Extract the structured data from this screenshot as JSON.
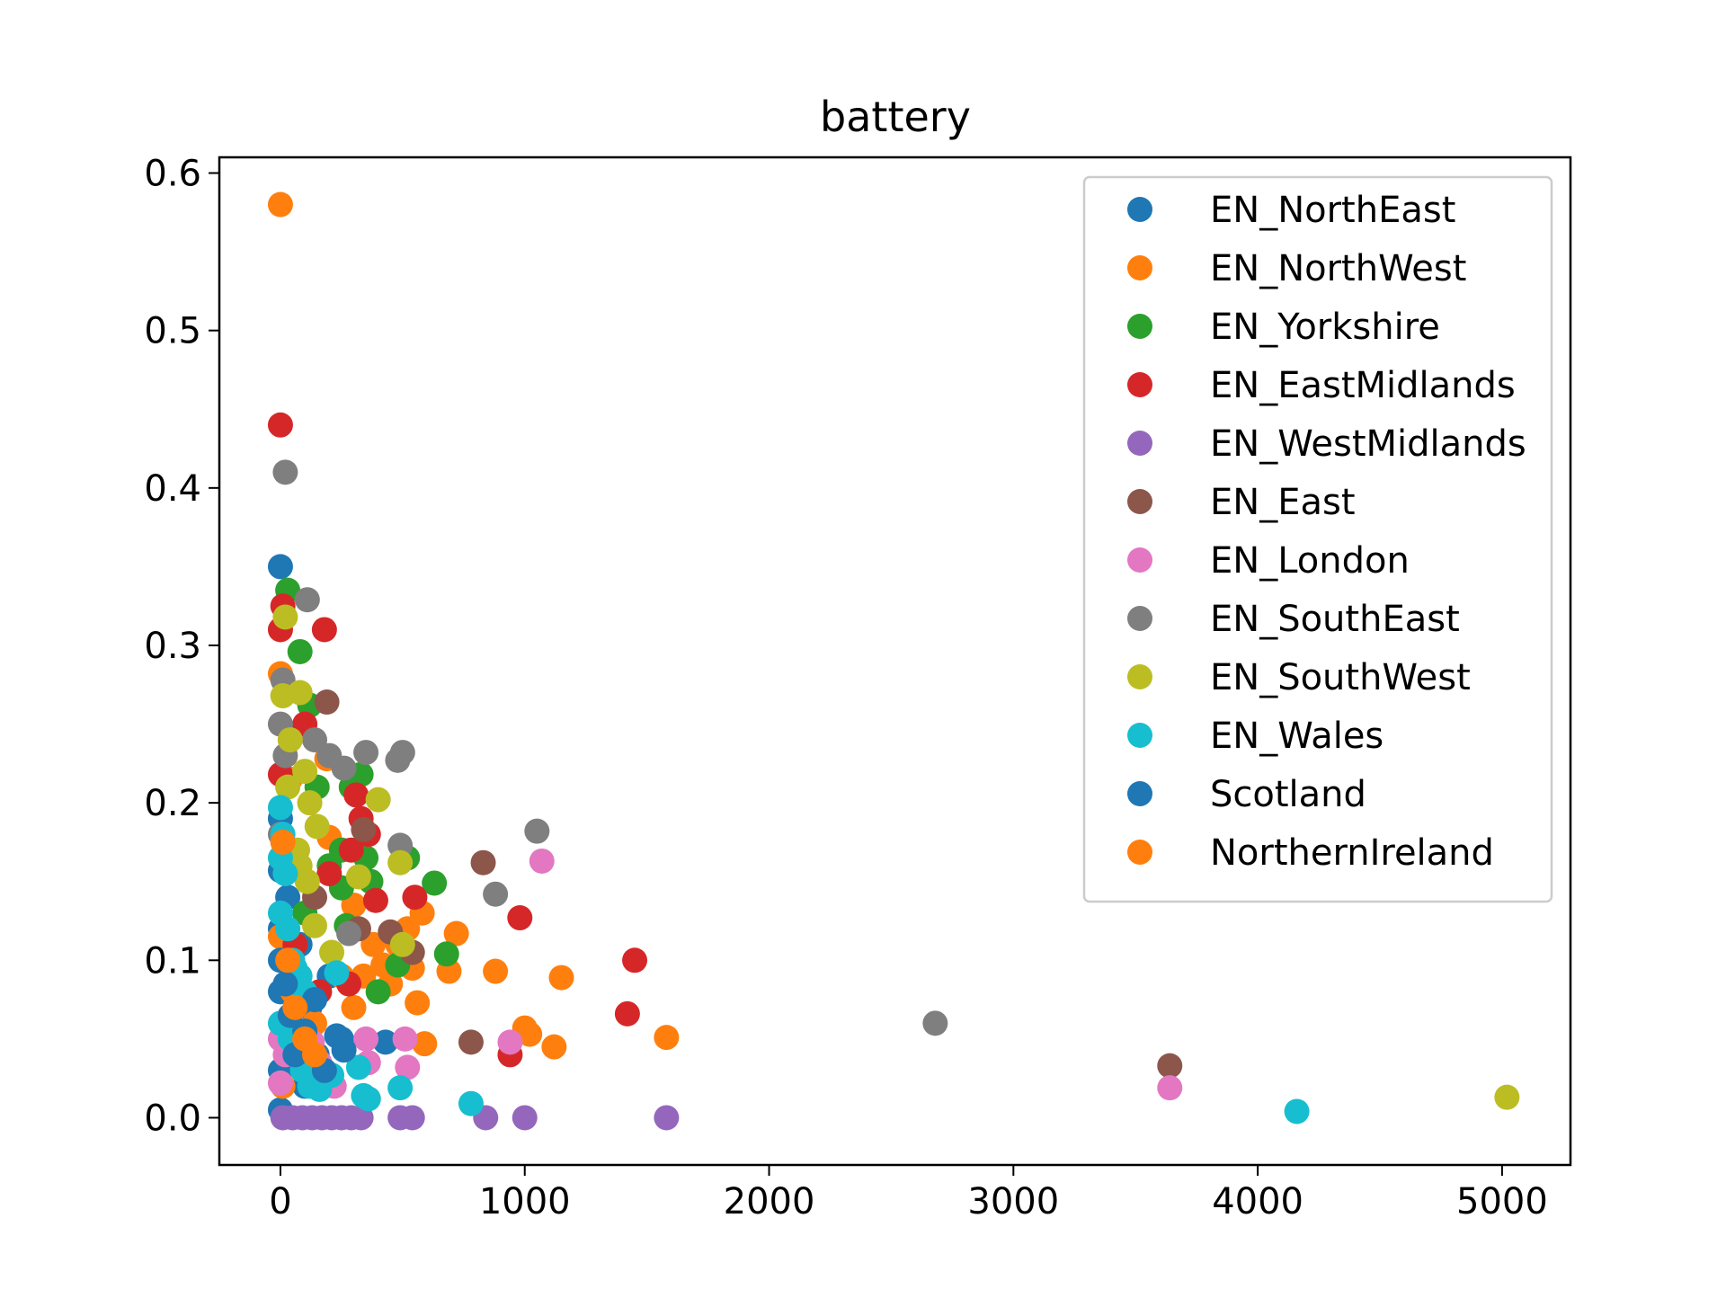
{
  "chart_data": {
    "type": "scatter",
    "title": "battery",
    "xlabel": "",
    "ylabel": "",
    "xlim": [
      -250,
      5280
    ],
    "ylim": [
      -0.03,
      0.61
    ],
    "xticks": [
      0,
      1000,
      2000,
      3000,
      4000,
      5000
    ],
    "xtick_labels": [
      "0",
      "1000",
      "2000",
      "3000",
      "4000",
      "5000"
    ],
    "yticks": [
      0.0,
      0.1,
      0.2,
      0.3,
      0.4,
      0.5,
      0.6
    ],
    "ytick_labels": [
      "0.0",
      "0.1",
      "0.2",
      "0.3",
      "0.4",
      "0.5",
      "0.6"
    ],
    "grid": false,
    "legend_position": "top-right",
    "series": [
      {
        "name": "EN_NorthEast",
        "color": "#1f77b4",
        "points": [
          [
            0,
            0.35
          ],
          [
            0,
            0.19
          ],
          [
            0,
            0.157
          ],
          [
            0,
            0.12
          ],
          [
            10,
            0.1
          ],
          [
            0,
            0.08
          ],
          [
            20,
            0.06
          ],
          [
            0,
            0.03
          ],
          [
            0,
            0.005
          ],
          [
            60,
            0.09
          ],
          [
            80,
            0.11
          ],
          [
            120,
            0.07
          ],
          [
            150,
            0.04
          ],
          [
            200,
            0.09
          ],
          [
            250,
            0.05
          ],
          [
            430,
            0.048
          ],
          [
            30,
            0.14
          ],
          [
            100,
            0.02
          ]
        ]
      },
      {
        "name": "EN_NorthWest",
        "color": "#ff7f0e",
        "points": [
          [
            0,
            0.58
          ],
          [
            0,
            0.282
          ],
          [
            40,
            0.215
          ],
          [
            190,
            0.228
          ],
          [
            200,
            0.178
          ],
          [
            0,
            0.115
          ],
          [
            50,
            0.08
          ],
          [
            10,
            0.02
          ],
          [
            300,
            0.135
          ],
          [
            340,
            0.09
          ],
          [
            380,
            0.11
          ],
          [
            420,
            0.097
          ],
          [
            450,
            0.085
          ],
          [
            480,
            0.11
          ],
          [
            520,
            0.12
          ],
          [
            540,
            0.095
          ],
          [
            580,
            0.13
          ],
          [
            560,
            0.073
          ],
          [
            590,
            0.047
          ],
          [
            690,
            0.093
          ],
          [
            720,
            0.117
          ],
          [
            880,
            0.093
          ],
          [
            1000,
            0.057
          ],
          [
            1020,
            0.053
          ],
          [
            1120,
            0.045
          ],
          [
            1150,
            0.089
          ],
          [
            1580,
            0.051
          ],
          [
            300,
            0.07
          ],
          [
            140,
            0.06
          ],
          [
            250,
            0.09
          ]
        ]
      },
      {
        "name": "EN_Yorkshire",
        "color": "#2ca02c",
        "points": [
          [
            30,
            0.335
          ],
          [
            80,
            0.296
          ],
          [
            120,
            0.262
          ],
          [
            150,
            0.21
          ],
          [
            200,
            0.16
          ],
          [
            250,
            0.146
          ],
          [
            270,
            0.122
          ],
          [
            290,
            0.21
          ],
          [
            330,
            0.218
          ],
          [
            350,
            0.165
          ],
          [
            370,
            0.15
          ],
          [
            400,
            0.08
          ],
          [
            480,
            0.097
          ],
          [
            520,
            0.165
          ],
          [
            630,
            0.149
          ],
          [
            680,
            0.104
          ],
          [
            100,
            0.13
          ],
          [
            250,
            0.17
          ]
        ]
      },
      {
        "name": "EN_EastMidlands",
        "color": "#d62728",
        "points": [
          [
            0,
            0.44
          ],
          [
            0,
            0.31
          ],
          [
            10,
            0.325
          ],
          [
            180,
            0.31
          ],
          [
            0,
            0.218
          ],
          [
            100,
            0.25
          ],
          [
            200,
            0.155
          ],
          [
            290,
            0.17
          ],
          [
            310,
            0.205
          ],
          [
            330,
            0.19
          ],
          [
            360,
            0.18
          ],
          [
            390,
            0.138
          ],
          [
            550,
            0.14
          ],
          [
            980,
            0.127
          ],
          [
            1450,
            0.1
          ],
          [
            1420,
            0.066
          ],
          [
            940,
            0.04
          ],
          [
            160,
            0.08
          ],
          [
            280,
            0.085
          ],
          [
            60,
            0.11
          ]
        ]
      },
      {
        "name": "EN_WestMidlands",
        "color": "#9467bd",
        "points": [
          [
            10,
            0.0
          ],
          [
            50,
            0.0
          ],
          [
            90,
            0.0
          ],
          [
            130,
            0.0
          ],
          [
            170,
            0.0
          ],
          [
            210,
            0.0
          ],
          [
            250,
            0.0
          ],
          [
            290,
            0.0
          ],
          [
            330,
            0.0
          ],
          [
            490,
            0.0
          ],
          [
            540,
            0.0
          ],
          [
            840,
            0.0
          ],
          [
            1000,
            0.0
          ],
          [
            1580,
            0.0
          ]
        ]
      },
      {
        "name": "EN_East",
        "color": "#8c564b",
        "points": [
          [
            190,
            0.264
          ],
          [
            140,
            0.14
          ],
          [
            320,
            0.12
          ],
          [
            340,
            0.183
          ],
          [
            450,
            0.118
          ],
          [
            540,
            0.105
          ],
          [
            830,
            0.162
          ],
          [
            780,
            0.048
          ],
          [
            3640,
            0.033
          ],
          [
            60,
            0.09
          ]
        ]
      },
      {
        "name": "EN_London",
        "color": "#e377c2",
        "points": [
          [
            0,
            0.05
          ],
          [
            0,
            0.022
          ],
          [
            20,
            0.04
          ],
          [
            130,
            0.048
          ],
          [
            160,
            0.035
          ],
          [
            220,
            0.02
          ],
          [
            350,
            0.05
          ],
          [
            360,
            0.035
          ],
          [
            510,
            0.05
          ],
          [
            520,
            0.032
          ],
          [
            940,
            0.048
          ],
          [
            1070,
            0.163
          ],
          [
            3640,
            0.019
          ]
        ]
      },
      {
        "name": "EN_SouthEast",
        "color": "#7f7f7f",
        "points": [
          [
            20,
            0.41
          ],
          [
            110,
            0.329
          ],
          [
            10,
            0.278
          ],
          [
            0,
            0.25
          ],
          [
            20,
            0.23
          ],
          [
            140,
            0.24
          ],
          [
            0,
            0.18
          ],
          [
            260,
            0.222
          ],
          [
            350,
            0.232
          ],
          [
            480,
            0.227
          ],
          [
            500,
            0.232
          ],
          [
            490,
            0.173
          ],
          [
            280,
            0.117
          ],
          [
            880,
            0.142
          ],
          [
            1050,
            0.182
          ],
          [
            2680,
            0.06
          ],
          [
            200,
            0.23
          ]
        ]
      },
      {
        "name": "EN_SouthWest",
        "color": "#bcbd22",
        "points": [
          [
            20,
            0.318
          ],
          [
            10,
            0.268
          ],
          [
            80,
            0.27
          ],
          [
            40,
            0.24
          ],
          [
            100,
            0.22
          ],
          [
            30,
            0.21
          ],
          [
            120,
            0.2
          ],
          [
            150,
            0.185
          ],
          [
            80,
            0.16
          ],
          [
            110,
            0.15
          ],
          [
            140,
            0.122
          ],
          [
            210,
            0.105
          ],
          [
            320,
            0.153
          ],
          [
            400,
            0.202
          ],
          [
            490,
            0.162
          ],
          [
            500,
            0.11
          ],
          [
            5020,
            0.013
          ],
          [
            70,
            0.17
          ]
        ]
      },
      {
        "name": "EN_Wales",
        "color": "#17becf",
        "points": [
          [
            0,
            0.197
          ],
          [
            10,
            0.18
          ],
          [
            0,
            0.165
          ],
          [
            20,
            0.155
          ],
          [
            0,
            0.13
          ],
          [
            30,
            0.12
          ],
          [
            50,
            0.1
          ],
          [
            80,
            0.09
          ],
          [
            100,
            0.08
          ],
          [
            0,
            0.06
          ],
          [
            40,
            0.05
          ],
          [
            70,
            0.04
          ],
          [
            90,
            0.03
          ],
          [
            120,
            0.02
          ],
          [
            160,
            0.018
          ],
          [
            210,
            0.027
          ],
          [
            230,
            0.092
          ],
          [
            320,
            0.032
          ],
          [
            340,
            0.014
          ],
          [
            360,
            0.012
          ],
          [
            490,
            0.019
          ],
          [
            780,
            0.009
          ],
          [
            4160,
            0.004
          ],
          [
            60,
            0.095
          ]
        ]
      },
      {
        "name": "Scotland",
        "color": "#1f77b4",
        "points": [
          [
            0,
            0.1
          ],
          [
            20,
            0.085
          ],
          [
            40,
            0.065
          ],
          [
            60,
            0.04
          ],
          [
            100,
            0.055
          ],
          [
            140,
            0.075
          ],
          [
            180,
            0.03
          ],
          [
            230,
            0.052
          ],
          [
            260,
            0.043
          ]
        ]
      },
      {
        "name": "NorthernIreland",
        "color": "#ff7f0e",
        "points": [
          [
            10,
            0.175
          ],
          [
            30,
            0.1
          ],
          [
            60,
            0.07
          ],
          [
            100,
            0.05
          ],
          [
            140,
            0.04
          ]
        ]
      }
    ]
  }
}
